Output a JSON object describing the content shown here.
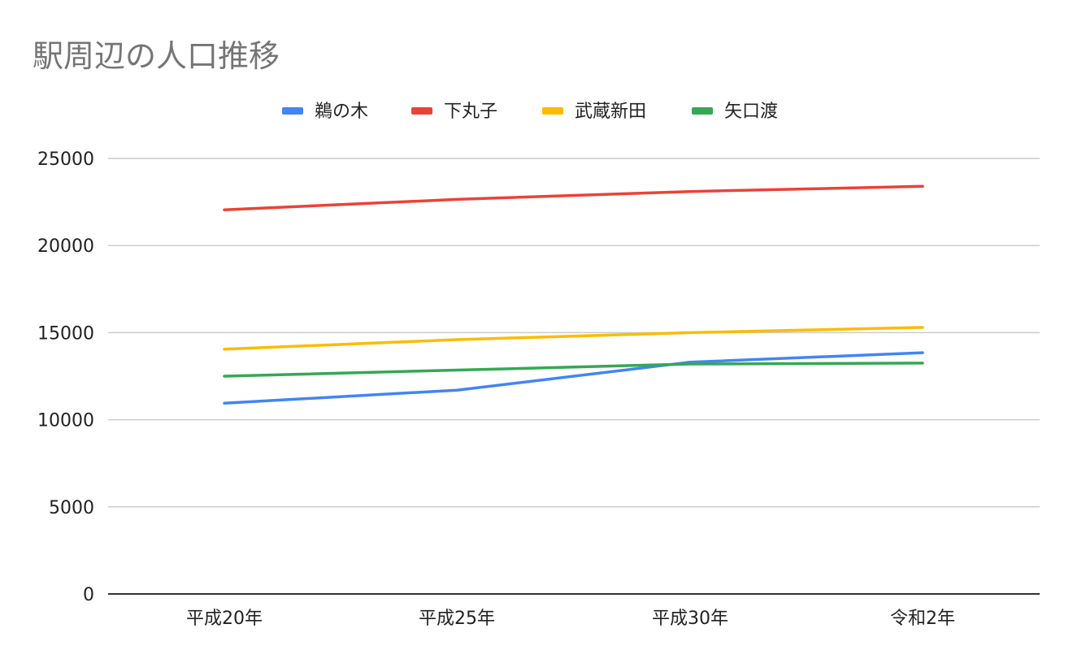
{
  "chart_data": {
    "type": "line",
    "title": "駅周辺の人口推移",
    "xlabel": "",
    "ylabel": "",
    "categories": [
      "平成20年",
      "平成25年",
      "平成30年",
      "令和2年"
    ],
    "ylim": [
      0,
      25000
    ],
    "yticks": [
      0,
      5000,
      10000,
      15000,
      20000,
      25000
    ],
    "grid": true,
    "legend_position": "top",
    "series": [
      {
        "name": "鵜の木",
        "color": "#4285F4",
        "values": [
          10950,
          11700,
          13300,
          13850
        ]
      },
      {
        "name": "下丸子",
        "color": "#EA4335",
        "values": [
          22050,
          22650,
          23100,
          23400
        ]
      },
      {
        "name": "武蔵新田",
        "color": "#FBBC04",
        "values": [
          14050,
          14600,
          15000,
          15300
        ]
      },
      {
        "name": "矢口渡",
        "color": "#34A853",
        "values": [
          12500,
          12850,
          13200,
          13250
        ]
      }
    ]
  }
}
